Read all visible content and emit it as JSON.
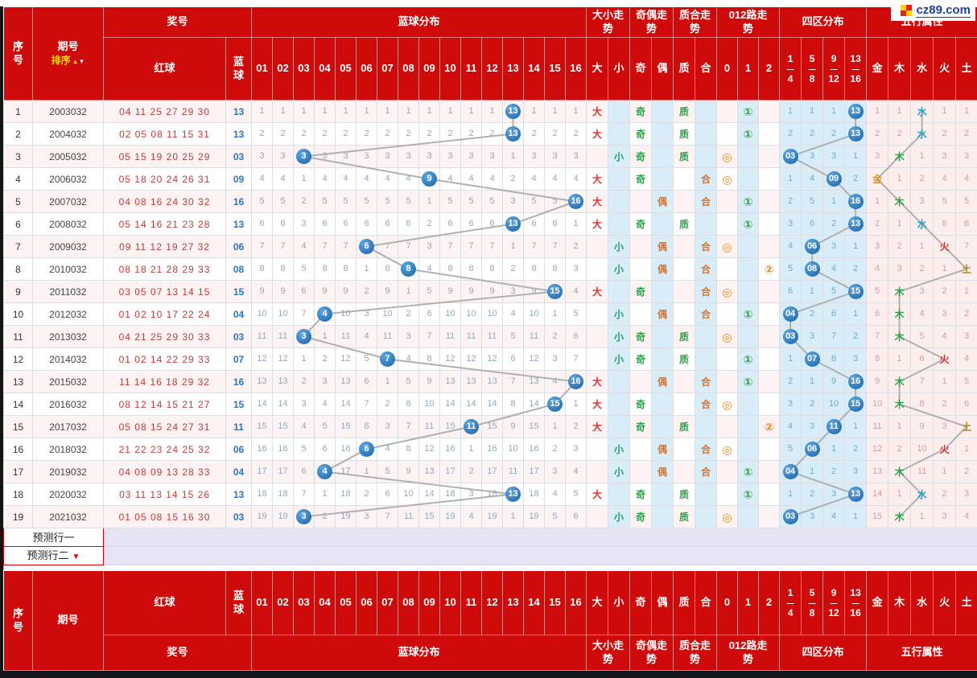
{
  "site": {
    "logo": "cz89.com"
  },
  "colors": {
    "header_red": "#cf0a0a",
    "hit_blue": "#1f6db2",
    "line_gray": "#b0b0b0",
    "light_blue_bg": "#d8edf8",
    "pink_bg": "#fdeeee",
    "lavender_bg": "#e9e2f4",
    "big_red": "#e03030",
    "small_green": "#1f9e6e",
    "odd_green": "#2fa04a",
    "even_orange": "#e8701e",
    "prime_green": "#2fa04a",
    "composite_orange": "#e8701e",
    "road0_orange": "#e8891e",
    "road1_green": "#2fa04a",
    "road2_orange": "#e8891e",
    "gold": "#d89a1e",
    "wood_green": "#2fa04a",
    "water_teal": "#1ba0c8",
    "fire_red": "#e03030",
    "earth_brown": "#b8860b"
  },
  "header": {
    "xuhao": "序号",
    "qihao": "期号",
    "paixu": "排序",
    "sort_up": "▲",
    "sort_down": "▼",
    "jianghao": "奖号",
    "hongqiu": "红球",
    "lanqiu": "蓝球",
    "lanqiu_fenbu": "蓝球分布",
    "ball_cols": [
      "01",
      "02",
      "03",
      "04",
      "05",
      "06",
      "07",
      "08",
      "09",
      "10",
      "11",
      "12",
      "13",
      "14",
      "15",
      "16"
    ],
    "daxiao_zoushi": "大小走势",
    "da": "大",
    "xiao": "小",
    "jiou_zoushi": "奇偶走势",
    "ji": "奇",
    "ou": "偶",
    "zhihe_zoushi": "质合走势",
    "zhi": "质",
    "he": "合",
    "lu012_zoushi": "012路走势",
    "lu_cols": [
      "0",
      "1",
      "2"
    ],
    "siqu_fenbu": "四区分布",
    "zone_cols": [
      [
        "1",
        "4"
      ],
      [
        "5",
        "8"
      ],
      [
        "9",
        "12"
      ],
      [
        "13",
        "16"
      ]
    ],
    "wuxing_shuxing": "五行属性",
    "wx_cols": [
      "金",
      "木",
      "水",
      "火",
      "土"
    ]
  },
  "road_symbols": [
    "◎",
    "①",
    "②"
  ],
  "predict_rows": [
    {
      "label": "预测行一",
      "arrow": ""
    },
    {
      "label": "预测行二",
      "arrow": "▼"
    }
  ],
  "rows": [
    {
      "seq": "1",
      "period": "2003032",
      "reds": "04 11 25 27 29 30",
      "blue": "13",
      "hit": 13,
      "dist": [
        1,
        1,
        1,
        1,
        1,
        1,
        1,
        1,
        1,
        1,
        1,
        1,
        null,
        1,
        1,
        1
      ],
      "size": "大",
      "parity": "奇",
      "prime": "质",
      "road": 1,
      "zone": 4,
      "zones": [
        1,
        1,
        1,
        null
      ],
      "zone_label": "13",
      "wx": 2,
      "wx_miss": [
        1,
        1,
        null,
        1,
        1
      ]
    },
    {
      "seq": "2",
      "period": "2004032",
      "reds": "02 05 08 11 15 31",
      "blue": "13",
      "hit": 13,
      "dist": [
        2,
        2,
        2,
        2,
        2,
        2,
        2,
        2,
        2,
        2,
        2,
        2,
        null,
        2,
        2,
        2
      ],
      "size": "大",
      "parity": "奇",
      "prime": "质",
      "road": 1,
      "zone": 4,
      "zones": [
        2,
        2,
        2,
        null
      ],
      "zone_label": "13",
      "wx": 2,
      "wx_miss": [
        2,
        2,
        null,
        2,
        2
      ]
    },
    {
      "seq": "3",
      "period": "2005032",
      "reds": "05 15 19 20 25 29",
      "blue": "03",
      "hit": 3,
      "dist": [
        3,
        3,
        null,
        3,
        3,
        3,
        3,
        3,
        3,
        3,
        3,
        3,
        1,
        3,
        3,
        3
      ],
      "size": "小",
      "parity": "奇",
      "prime": "质",
      "road": 0,
      "zone": 1,
      "zones": [
        null,
        3,
        3,
        1
      ],
      "zone_label": "03",
      "wx": 1,
      "wx_miss": [
        3,
        null,
        1,
        3,
        3
      ]
    },
    {
      "seq": "4",
      "period": "2006032",
      "reds": "05 18 20 24 26 31",
      "blue": "09",
      "hit": 9,
      "dist": [
        4,
        4,
        1,
        4,
        4,
        4,
        4,
        4,
        null,
        4,
        4,
        4,
        2,
        4,
        4,
        4
      ],
      "size": "大",
      "parity": "奇",
      "prime": "合",
      "road": 0,
      "zone": 3,
      "zones": [
        1,
        4,
        null,
        2
      ],
      "zone_label": "09",
      "wx": 0,
      "wx_miss": [
        null,
        1,
        2,
        4,
        4
      ]
    },
    {
      "seq": "5",
      "period": "2007032",
      "reds": "04 08 16 24 30 32",
      "blue": "16",
      "hit": 16,
      "dist": [
        5,
        5,
        2,
        5,
        5,
        5,
        5,
        5,
        1,
        5,
        5,
        5,
        3,
        5,
        5,
        null
      ],
      "size": "大",
      "parity": "偶",
      "prime": "合",
      "road": 1,
      "zone": 4,
      "zones": [
        2,
        5,
        1,
        null
      ],
      "zone_label": "16",
      "wx": 1,
      "wx_miss": [
        1,
        null,
        3,
        5,
        5
      ]
    },
    {
      "seq": "6",
      "period": "2008032",
      "reds": "05 14 16 21 23 28",
      "blue": "13",
      "hit": 13,
      "dist": [
        6,
        6,
        3,
        6,
        6,
        6,
        6,
        6,
        2,
        6,
        6,
        6,
        null,
        6,
        6,
        1
      ],
      "size": "大",
      "parity": "奇",
      "prime": "质",
      "road": 1,
      "zone": 4,
      "zones": [
        3,
        6,
        2,
        null
      ],
      "zone_label": "13",
      "wx": 2,
      "wx_miss": [
        2,
        1,
        null,
        6,
        6
      ]
    },
    {
      "seq": "7",
      "period": "2009032",
      "reds": "09 11 12 19 27 32",
      "blue": "06",
      "hit": 6,
      "dist": [
        7,
        7,
        4,
        7,
        7,
        null,
        7,
        7,
        3,
        7,
        7,
        7,
        1,
        7,
        7,
        2
      ],
      "size": "小",
      "parity": "偶",
      "prime": "合",
      "road": 0,
      "zone": 2,
      "zones": [
        4,
        null,
        3,
        1
      ],
      "zone_label": "06",
      "wx": 3,
      "wx_miss": [
        3,
        2,
        1,
        null,
        7
      ]
    },
    {
      "seq": "8",
      "period": "2010032",
      "reds": "08 18 21 28 29 33",
      "blue": "08",
      "hit": 8,
      "dist": [
        8,
        8,
        5,
        8,
        8,
        1,
        8,
        null,
        4,
        8,
        8,
        8,
        2,
        8,
        8,
        3
      ],
      "size": "小",
      "parity": "偶",
      "prime": "合",
      "road": 2,
      "zone": 2,
      "zones": [
        5,
        null,
        4,
        2
      ],
      "zone_label": "08",
      "wx": 4,
      "wx_miss": [
        4,
        3,
        2,
        1,
        null
      ]
    },
    {
      "seq": "9",
      "period": "2011032",
      "reds": "03 05 07 13 14 15",
      "blue": "15",
      "hit": 15,
      "dist": [
        9,
        9,
        6,
        9,
        9,
        2,
        9,
        1,
        5,
        9,
        9,
        9,
        3,
        9,
        null,
        4
      ],
      "size": "大",
      "parity": "奇",
      "prime": "合",
      "road": 0,
      "zone": 4,
      "zones": [
        6,
        1,
        5,
        null
      ],
      "zone_label": "15",
      "wx": 1,
      "wx_miss": [
        5,
        null,
        3,
        2,
        1
      ]
    },
    {
      "seq": "10",
      "period": "2012032",
      "reds": "01 02 10 17 22 24",
      "blue": "04",
      "hit": 4,
      "dist": [
        10,
        10,
        7,
        null,
        10,
        3,
        10,
        2,
        6,
        10,
        10,
        10,
        4,
        10,
        1,
        5
      ],
      "size": "小",
      "parity": "偶",
      "prime": "合",
      "road": 1,
      "zone": 1,
      "zones": [
        null,
        2,
        6,
        1
      ],
      "zone_label": "04",
      "wx": 1,
      "wx_miss": [
        6,
        null,
        4,
        3,
        2
      ]
    },
    {
      "seq": "11",
      "period": "2013032",
      "reds": "04 21 25 29 30 33",
      "blue": "03",
      "hit": 3,
      "dist": [
        11,
        11,
        null,
        1,
        11,
        4,
        11,
        3,
        7,
        11,
        11,
        11,
        5,
        11,
        2,
        6
      ],
      "size": "小",
      "parity": "奇",
      "prime": "质",
      "road": 0,
      "zone": 1,
      "zones": [
        null,
        3,
        7,
        2
      ],
      "zone_label": "03",
      "wx": 1,
      "wx_miss": [
        7,
        null,
        5,
        4,
        3
      ]
    },
    {
      "seq": "12",
      "period": "2014032",
      "reds": "01 02 14 22 29 33",
      "blue": "07",
      "hit": 7,
      "dist": [
        12,
        12,
        1,
        2,
        12,
        5,
        null,
        4,
        8,
        12,
        12,
        12,
        6,
        12,
        3,
        7
      ],
      "size": "小",
      "parity": "奇",
      "prime": "质",
      "road": 1,
      "zone": 2,
      "zones": [
        1,
        null,
        8,
        3
      ],
      "zone_label": "07",
      "wx": 3,
      "wx_miss": [
        8,
        1,
        6,
        null,
        4
      ]
    },
    {
      "seq": "13",
      "period": "2015032",
      "reds": "11 14 16 18 29 32",
      "blue": "16",
      "hit": 16,
      "dist": [
        13,
        13,
        2,
        3,
        13,
        6,
        1,
        5,
        9,
        13,
        13,
        13,
        7,
        13,
        4,
        null
      ],
      "size": "大",
      "parity": "偶",
      "prime": "合",
      "road": 1,
      "zone": 4,
      "zones": [
        2,
        1,
        9,
        null
      ],
      "zone_label": "16",
      "wx": 1,
      "wx_miss": [
        9,
        null,
        7,
        1,
        5
      ]
    },
    {
      "seq": "14",
      "period": "2016032",
      "reds": "08 12 14 15 21 27",
      "blue": "15",
      "hit": 15,
      "dist": [
        14,
        14,
        3,
        4,
        14,
        7,
        2,
        6,
        10,
        14,
        14,
        14,
        8,
        14,
        null,
        1
      ],
      "size": "大",
      "parity": "奇",
      "prime": "合",
      "road": 0,
      "zone": 4,
      "zones": [
        3,
        2,
        10,
        null
      ],
      "zone_label": "15",
      "wx": 1,
      "wx_miss": [
        10,
        null,
        8,
        2,
        6
      ]
    },
    {
      "seq": "15",
      "period": "2017032",
      "reds": "05 08 15 24 27 31",
      "blue": "11",
      "hit": 11,
      "dist": [
        15,
        15,
        4,
        5,
        15,
        8,
        3,
        7,
        11,
        15,
        null,
        15,
        9,
        15,
        1,
        2
      ],
      "size": "大",
      "parity": "奇",
      "prime": "质",
      "road": 2,
      "zone": 3,
      "zones": [
        4,
        3,
        null,
        1
      ],
      "zone_label": "11",
      "wx": 4,
      "wx_miss": [
        11,
        1,
        9,
        3,
        null
      ]
    },
    {
      "seq": "16",
      "period": "2018032",
      "reds": "21 22 23 24 25 32",
      "blue": "06",
      "hit": 6,
      "dist": [
        16,
        16,
        5,
        6,
        16,
        null,
        4,
        8,
        12,
        16,
        1,
        16,
        10,
        16,
        2,
        3
      ],
      "size": "小",
      "parity": "偶",
      "prime": "合",
      "road": 0,
      "zone": 2,
      "zones": [
        5,
        null,
        1,
        2
      ],
      "zone_label": "06",
      "wx": 3,
      "wx_miss": [
        12,
        2,
        10,
        null,
        1
      ]
    },
    {
      "seq": "17",
      "period": "2019032",
      "reds": "04 08 09 13 28 33",
      "blue": "04",
      "hit": 4,
      "dist": [
        17,
        17,
        6,
        null,
        17,
        1,
        5,
        9,
        13,
        17,
        2,
        17,
        11,
        17,
        3,
        4
      ],
      "size": "小",
      "parity": "偶",
      "prime": "合",
      "road": 1,
      "zone": 1,
      "zones": [
        null,
        1,
        2,
        3
      ],
      "zone_label": "04",
      "wx": 1,
      "wx_miss": [
        13,
        null,
        11,
        1,
        2
      ]
    },
    {
      "seq": "18",
      "period": "2020032",
      "reds": "03 11 13 14 15 26",
      "blue": "13",
      "hit": 13,
      "dist": [
        18,
        18,
        7,
        1,
        18,
        2,
        6,
        10,
        14,
        18,
        3,
        18,
        null,
        18,
        4,
        5
      ],
      "size": "大",
      "parity": "奇",
      "prime": "质",
      "road": 1,
      "zone": 4,
      "zones": [
        1,
        2,
        3,
        null
      ],
      "zone_label": "13",
      "wx": 2,
      "wx_miss": [
        14,
        1,
        null,
        2,
        3
      ]
    },
    {
      "seq": "19",
      "period": "2021032",
      "reds": "01 05 08 15 16 30",
      "blue": "03",
      "hit": 3,
      "dist": [
        19,
        19,
        null,
        2,
        19,
        3,
        7,
        11,
        15,
        19,
        4,
        19,
        1,
        19,
        5,
        6
      ],
      "size": "小",
      "parity": "奇",
      "prime": "质",
      "road": 0,
      "zone": 1,
      "zones": [
        null,
        3,
        4,
        1
      ],
      "zone_label": "03",
      "wx": 1,
      "wx_miss": [
        15,
        null,
        1,
        3,
        4
      ]
    }
  ],
  "chart_data": {
    "type": "line",
    "x": [
      "2003032",
      "2004032",
      "2005032",
      "2006032",
      "2007032",
      "2008032",
      "2009032",
      "2010032",
      "2011032",
      "2012032",
      "2013032",
      "2014032",
      "2015032",
      "2016032",
      "2017032",
      "2018032",
      "2019032",
      "2020032",
      "2021032"
    ],
    "series": [
      {
        "name": "蓝球",
        "values": [
          13,
          13,
          3,
          9,
          16,
          13,
          6,
          8,
          15,
          4,
          3,
          7,
          16,
          15,
          11,
          6,
          4,
          13,
          3
        ]
      },
      {
        "name": "四区",
        "values": [
          4,
          4,
          1,
          3,
          4,
          4,
          2,
          2,
          4,
          1,
          1,
          2,
          4,
          4,
          3,
          2,
          1,
          4,
          1
        ]
      },
      {
        "name": "五行",
        "values": [
          "水",
          "水",
          "木",
          "金",
          "木",
          "水",
          "火",
          "土",
          "木",
          "木",
          "木",
          "火",
          "木",
          "木",
          "土",
          "火",
          "木",
          "水",
          "木"
        ]
      }
    ],
    "xlabel": "期号",
    "ylabel": "蓝球分布",
    "ylim": [
      1,
      16
    ]
  }
}
